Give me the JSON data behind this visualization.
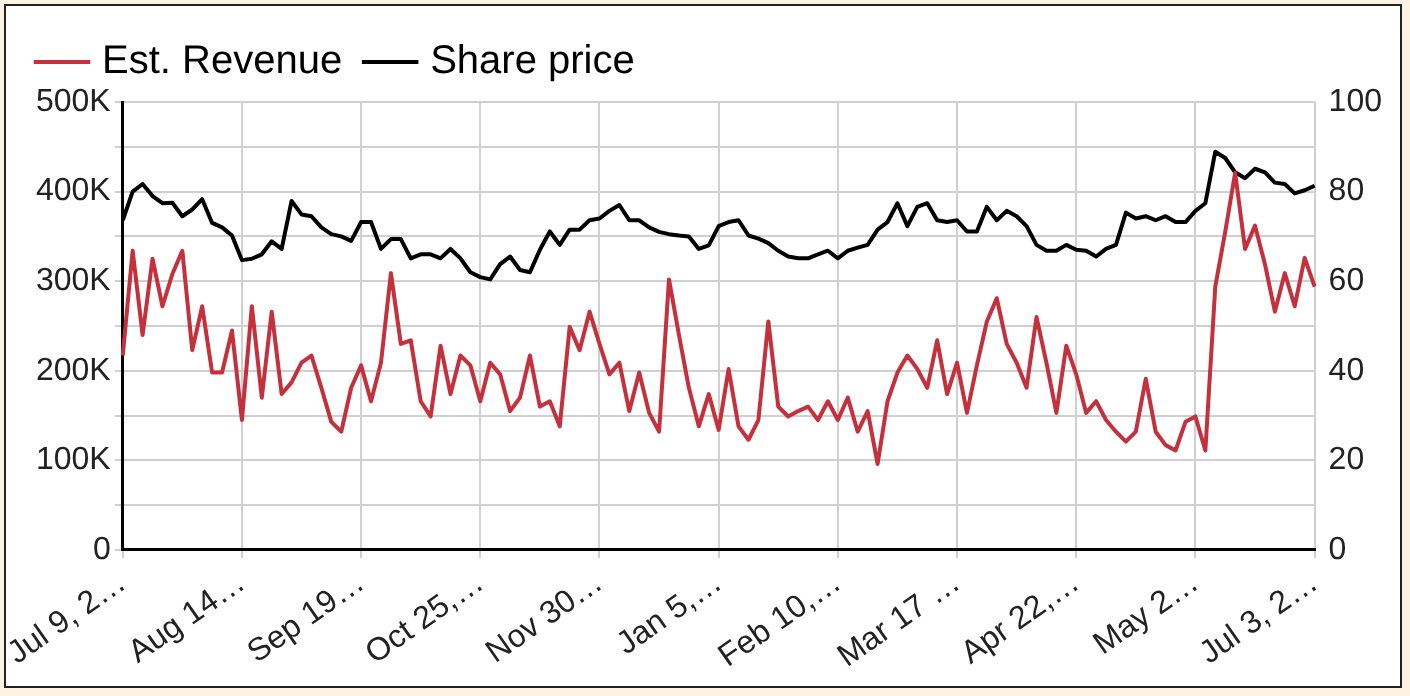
{
  "chart_data": {
    "type": "line",
    "legend": "top",
    "grid": true,
    "marker": "none",
    "line_style": "solid",
    "categories": [
      "Jul 9, 2…",
      null,
      null,
      null,
      null,
      null,
      null,
      null,
      null,
      null,
      null,
      null,
      "Aug 14…",
      null,
      null,
      null,
      null,
      null,
      null,
      null,
      null,
      null,
      null,
      null,
      "Sep 19…",
      null,
      null,
      null,
      null,
      null,
      null,
      null,
      null,
      null,
      null,
      null,
      "Oct 25,…",
      null,
      null,
      null,
      null,
      null,
      null,
      null,
      null,
      null,
      null,
      null,
      "Nov 30…",
      null,
      null,
      null,
      null,
      null,
      null,
      null,
      null,
      null,
      null,
      null,
      "Jan 5,…",
      null,
      null,
      null,
      null,
      null,
      null,
      null,
      null,
      null,
      null,
      null,
      "Feb 10,…",
      null,
      null,
      null,
      null,
      null,
      null,
      null,
      null,
      null,
      null,
      null,
      "Mar 17 …",
      null,
      null,
      null,
      null,
      null,
      null,
      null,
      null,
      null,
      null,
      null,
      "Apr 22,…",
      null,
      null,
      null,
      null,
      null,
      null,
      null,
      null,
      null,
      null,
      null,
      "May 2…",
      null,
      null,
      null,
      null,
      null,
      null,
      null,
      null,
      null,
      null,
      null,
      "Jul 3, 2…"
    ],
    "ylim": [
      0,
      500000
    ],
    "yticks": [
      {
        "value": 0,
        "label": "0"
      },
      {
        "value": 50000,
        "label": null
      },
      {
        "value": 100000,
        "label": "100K"
      },
      {
        "value": 150000,
        "label": null
      },
      {
        "value": 200000,
        "label": "200K"
      },
      {
        "value": 250000,
        "label": null
      },
      {
        "value": 300000,
        "label": "300K"
      },
      {
        "value": 350000,
        "label": null
      },
      {
        "value": 400000,
        "label": "400K"
      },
      {
        "value": 450000,
        "label": null
      },
      {
        "value": 500000,
        "label": "500K"
      }
    ],
    "y2lim": [
      0,
      100
    ],
    "y2ticks": [
      0,
      20,
      40,
      60,
      80,
      100
    ],
    "series": [
      {
        "name": "Est. Revenue",
        "color": "#c5303d",
        "values": [
          217000,
          334000,
          240000,
          325000,
          272000,
          308000,
          334000,
          223000,
          272000,
          198000,
          198000,
          245000,
          145000,
          272000,
          170000,
          266000,
          174000,
          187000,
          209000,
          217000,
          181000,
          143000,
          132000,
          181000,
          206000,
          166000,
          209000,
          309000,
          230000,
          234000,
          166000,
          149000,
          228000,
          174000,
          217000,
          206000,
          166000,
          209000,
          196000,
          155000,
          170000,
          217000,
          160000,
          166000,
          138000,
          249000,
          223000,
          266000,
          230000,
          196000,
          209000,
          155000,
          198000,
          153000,
          132000,
          302000,
          240000,
          181000,
          138000,
          174000,
          134000,
          202000,
          138000,
          123000,
          145000,
          255000,
          160000,
          149000,
          155000,
          160000,
          145000,
          166000,
          145000,
          170000,
          132000,
          155000,
          96000,
          166000,
          198000,
          217000,
          202000,
          181000,
          234000,
          174000,
          209000,
          153000,
          206000,
          255000,
          281000,
          230000,
          209000,
          181000,
          260000,
          209000,
          153000,
          228000,
          196000,
          153000,
          166000,
          145000,
          132000,
          121000,
          132000,
          191000,
          132000,
          117000,
          111000,
          143000,
          149000,
          111000,
          294000,
          355000,
          421000,
          336000,
          362000,
          319000,
          266000,
          309000,
          272000,
          326000,
          294000
        ]
      },
      {
        "name": "Share price",
        "color": "#000000",
        "axis": "y2",
        "values": [
          73.6,
          80,
          81.7,
          79,
          77.4,
          77.5,
          74.5,
          76,
          78.3,
          73,
          72,
          70.2,
          64.7,
          65,
          66,
          68.9,
          67.2,
          77.9,
          74.9,
          74.5,
          72,
          70.5,
          70,
          69,
          73.2,
          73.2,
          67.2,
          69.4,
          69.4,
          65.1,
          66,
          66,
          65.1,
          67.2,
          65.1,
          62,
          60.9,
          60.4,
          63.8,
          65.5,
          62.5,
          62,
          67,
          71.1,
          68.1,
          71.5,
          71.5,
          73.6,
          74,
          75.7,
          77,
          73.6,
          73.6,
          72,
          71,
          70.5,
          70.2,
          70,
          67.2,
          68,
          72.3,
          73.2,
          73.6,
          70.2,
          69.5,
          68.5,
          66.8,
          65.5,
          65.1,
          65.1,
          66,
          66.8,
          65.1,
          66.8,
          67.5,
          68.1,
          71.5,
          73.2,
          77.4,
          72.3,
          76.6,
          77.4,
          73.6,
          73.2,
          73.6,
          71.1,
          71.1,
          76.6,
          73.6,
          75.7,
          74.5,
          72.3,
          68.1,
          66.8,
          66.8,
          68.1,
          67,
          66.8,
          65.5,
          67.2,
          68.1,
          75.3,
          74,
          74.5,
          73.6,
          74.5,
          73.2,
          73.2,
          75.7,
          77.4,
          88.9,
          87.5,
          84.3,
          83,
          85.1,
          84.3,
          82,
          81.7,
          79.6,
          80.3,
          81.3
        ]
      }
    ]
  }
}
